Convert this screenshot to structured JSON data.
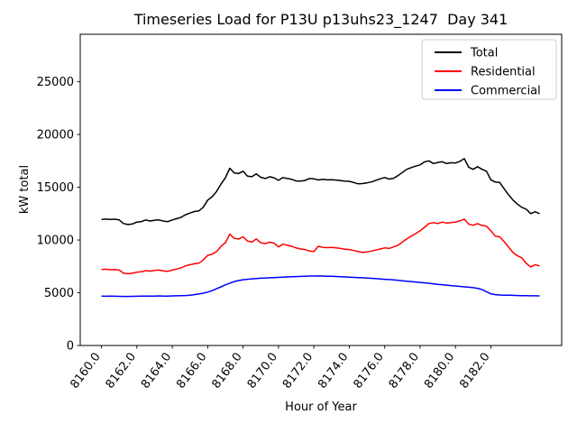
{
  "chart_data": {
    "type": "line",
    "title": "Timeseries Load for P13U p13uhs23_1247  Day 341",
    "xlabel": "Hour of Year",
    "ylabel": "kW total",
    "xlim": [
      8158.8,
      8186.0
    ],
    "ylim": [
      0,
      29500
    ],
    "grid": false,
    "legend_position": "upper right",
    "x": {
      "start": 8160.0,
      "step": 0.25,
      "count": 100
    },
    "xticks": {
      "values": [
        8160,
        8162,
        8164,
        8166,
        8168,
        8170,
        8172,
        8174,
        8176,
        8178,
        8180,
        8182
      ],
      "labels": [
        "8160.0",
        "8162.0",
        "8164.0",
        "8166.0",
        "8168.0",
        "8170.0",
        "8172.0",
        "8174.0",
        "8176.0",
        "8178.0",
        "8180.0",
        "8182.0"
      ]
    },
    "yticks": {
      "values": [
        0,
        5000,
        10000,
        15000,
        20000,
        25000
      ],
      "labels": [
        "0",
        "5000",
        "10000",
        "15000",
        "20000",
        "25000"
      ]
    },
    "series": [
      {
        "name": "Total",
        "color": "#000000",
        "values": [
          11950,
          11980,
          11950,
          11970,
          11900,
          11560,
          11470,
          11520,
          11700,
          11740,
          11900,
          11800,
          11880,
          11900,
          11790,
          11740,
          11900,
          12020,
          12150,
          12400,
          12550,
          12700,
          12760,
          13100,
          13780,
          14100,
          14600,
          15300,
          15900,
          16800,
          16350,
          16300,
          16520,
          16050,
          16000,
          16260,
          15950,
          15830,
          16000,
          15900,
          15660,
          15920,
          15830,
          15750,
          15600,
          15580,
          15650,
          15830,
          15800,
          15690,
          15750,
          15700,
          15720,
          15680,
          15640,
          15580,
          15560,
          15450,
          15320,
          15350,
          15420,
          15500,
          15660,
          15800,
          15920,
          15780,
          15850,
          16100,
          16400,
          16700,
          16860,
          17000,
          17120,
          17400,
          17500,
          17250,
          17350,
          17420,
          17250,
          17320,
          17300,
          17450,
          17720,
          16900,
          16700,
          16950,
          16700,
          16520,
          15700,
          15490,
          15450,
          14850,
          14290,
          13780,
          13400,
          13100,
          12920,
          12500,
          12670,
          12500
        ]
      },
      {
        "name": "Residential",
        "color": "#ff0000",
        "values": [
          7200,
          7230,
          7180,
          7200,
          7150,
          6850,
          6800,
          6850,
          6950,
          6990,
          7100,
          7050,
          7120,
          7150,
          7060,
          7030,
          7150,
          7250,
          7350,
          7550,
          7650,
          7750,
          7800,
          8100,
          8550,
          8650,
          8900,
          9400,
          9750,
          10550,
          10150,
          10100,
          10300,
          9900,
          9800,
          10100,
          9750,
          9650,
          9800,
          9700,
          9350,
          9600,
          9500,
          9400,
          9250,
          9150,
          9100,
          8950,
          8900,
          9410,
          9300,
          9280,
          9300,
          9250,
          9200,
          9120,
          9100,
          9000,
          8900,
          8820,
          8870,
          8950,
          9050,
          9150,
          9250,
          9200,
          9350,
          9500,
          9800,
          10100,
          10360,
          10600,
          10870,
          11200,
          11560,
          11650,
          11560,
          11700,
          11600,
          11650,
          11700,
          11810,
          11980,
          11500,
          11400,
          11550,
          11380,
          11300,
          10870,
          10360,
          10300,
          9840,
          9330,
          8820,
          8500,
          8310,
          7790,
          7450,
          7650,
          7550
        ]
      },
      {
        "name": "Commercial",
        "color": "#0000ff",
        "values": [
          4680,
          4670,
          4680,
          4670,
          4660,
          4650,
          4650,
          4660,
          4670,
          4680,
          4690,
          4680,
          4690,
          4700,
          4690,
          4690,
          4700,
          4710,
          4720,
          4740,
          4770,
          4820,
          4880,
          4960,
          5060,
          5200,
          5380,
          5560,
          5750,
          5910,
          6060,
          6160,
          6230,
          6280,
          6320,
          6350,
          6380,
          6400,
          6420,
          6440,
          6460,
          6480,
          6500,
          6520,
          6530,
          6550,
          6560,
          6580,
          6580,
          6590,
          6580,
          6570,
          6560,
          6540,
          6520,
          6500,
          6480,
          6460,
          6440,
          6420,
          6400,
          6370,
          6340,
          6310,
          6280,
          6250,
          6220,
          6180,
          6140,
          6100,
          6060,
          6020,
          5980,
          5940,
          5900,
          5850,
          5800,
          5760,
          5720,
          5680,
          5640,
          5600,
          5560,
          5520,
          5480,
          5420,
          5300,
          5100,
          4900,
          4820,
          4790,
          4770,
          4760,
          4750,
          4740,
          4730,
          4720,
          4710,
          4710,
          4700
        ]
      }
    ]
  }
}
